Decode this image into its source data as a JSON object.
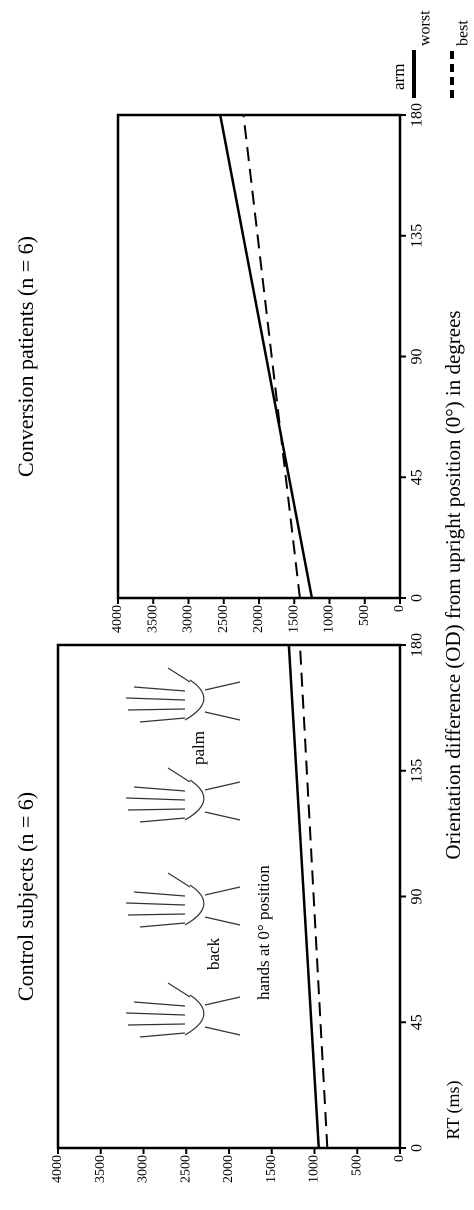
{
  "chart_data": [
    {
      "type": "line",
      "title": "Control subjects (n = 6)",
      "ylabel": "RT (ms)",
      "xlabel": "Orientation difference (OD) from upright position (0°) in degrees",
      "x": [
        0,
        180
      ],
      "series": [
        {
          "name": "worst",
          "color": "#000000",
          "dash": "solid",
          "values": [
            950,
            1300
          ]
        },
        {
          "name": "best",
          "color": "#000000",
          "dash": "dashed",
          "values": [
            850,
            1170
          ]
        }
      ],
      "xlim": [
        0,
        180
      ],
      "xticks": [
        0,
        45,
        90,
        135,
        180
      ],
      "ylim": [
        0,
        4000
      ],
      "yticks": [
        0,
        500,
        1000,
        1500,
        2000,
        2500,
        3000,
        3500,
        4000
      ],
      "annotations": [
        "back",
        "palm",
        "hands at 0° position"
      ]
    },
    {
      "type": "line",
      "title": "Conversion patients (n = 6)",
      "x": [
        0,
        180
      ],
      "series": [
        {
          "name": "worst",
          "color": "#000000",
          "dash": "solid",
          "values": [
            1250,
            2550
          ]
        },
        {
          "name": "best",
          "color": "#000000",
          "dash": "dashed",
          "values": [
            1420,
            2220
          ]
        }
      ],
      "xlim": [
        0,
        180
      ],
      "xticks": [
        0,
        45,
        90,
        135,
        180
      ],
      "ylim": [
        0,
        4000
      ],
      "yticks": [
        0,
        500,
        1000,
        1500,
        2000,
        2500,
        3000,
        3500,
        4000
      ],
      "legend_title": "arm",
      "legend": "outside-right"
    }
  ]
}
